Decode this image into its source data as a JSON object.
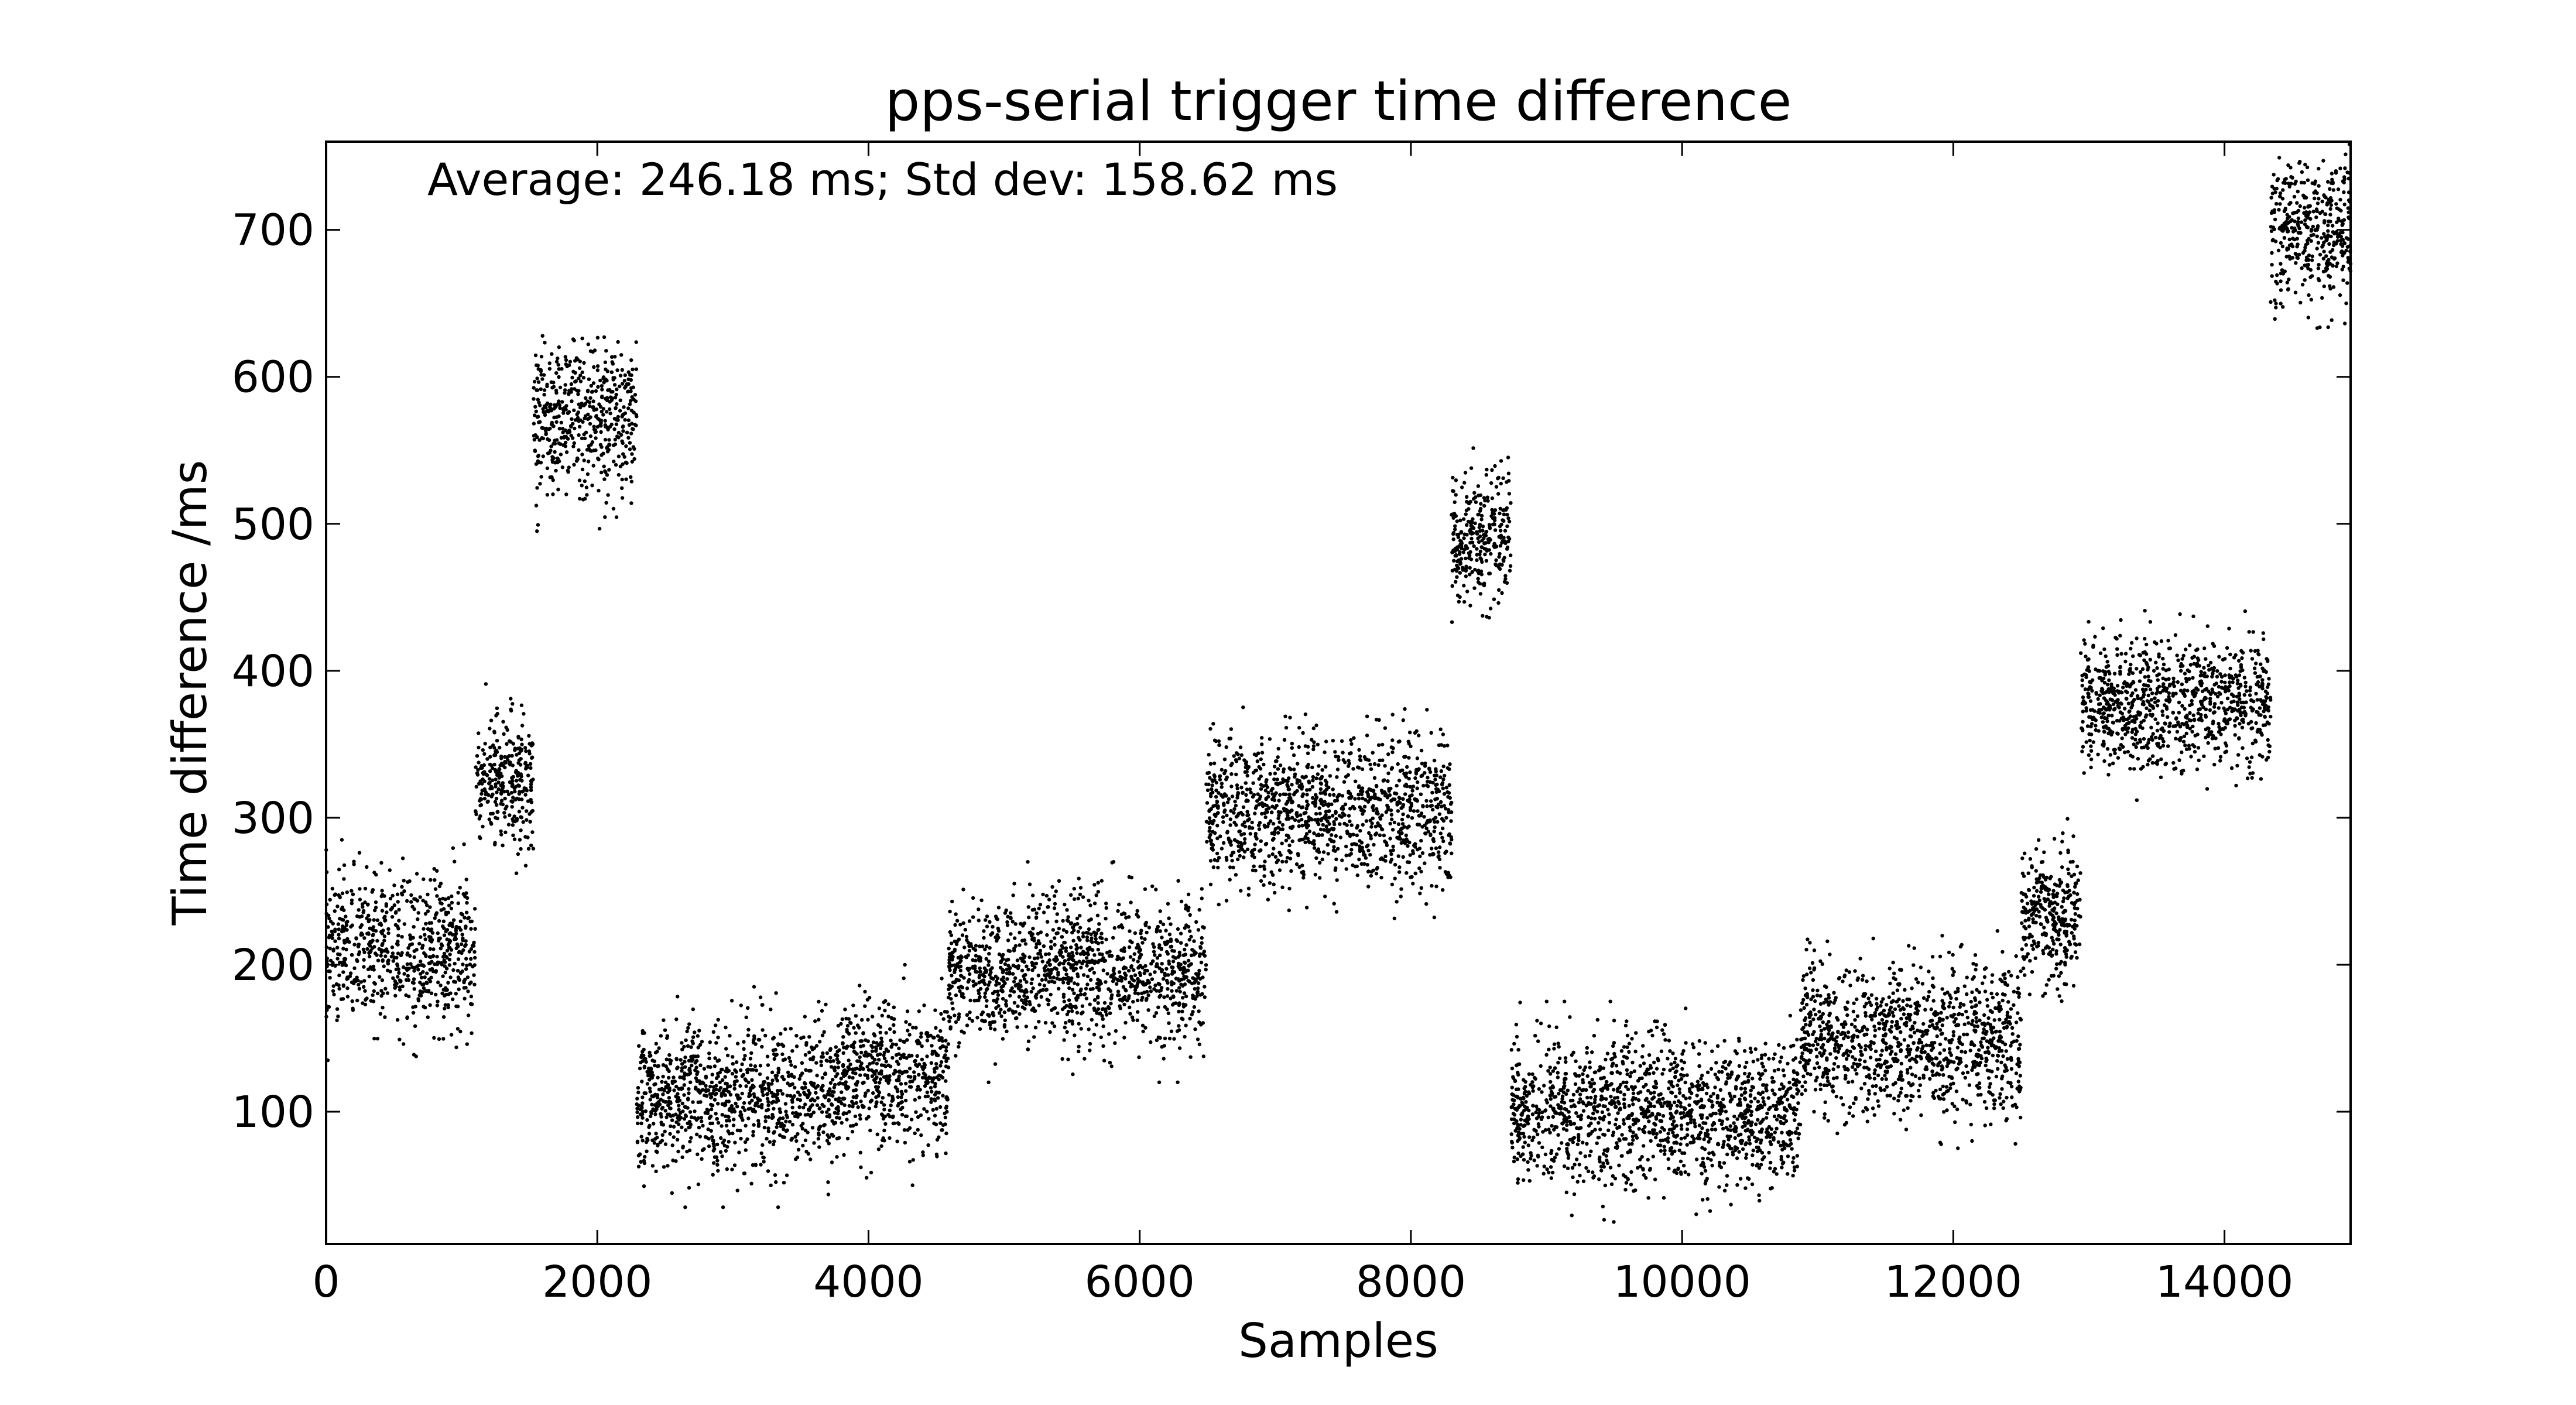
{
  "chart_data": {
    "type": "scatter",
    "title": "pps-serial trigger time difference",
    "xlabel": "Samples",
    "ylabel": "Time difference /ms",
    "xlim": [
      0,
      14930
    ],
    "ylim": [
      10,
      760
    ],
    "xticks": [
      0,
      2000,
      4000,
      6000,
      8000,
      10000,
      12000,
      14000
    ],
    "yticks": [
      100,
      200,
      300,
      400,
      500,
      600,
      700
    ],
    "annotation": "Average: 246.18 ms;  Std dev: 158.62 ms",
    "grid": false,
    "marker_color": "#000000",
    "segments": [
      {
        "x_start": 0,
        "x_end": 1100,
        "center": 210,
        "spread": 25,
        "count": 700
      },
      {
        "x_start": 1100,
        "x_end": 1530,
        "center": 325,
        "spread": 22,
        "count": 300
      },
      {
        "x_start": 1530,
        "x_end": 2290,
        "center": 570,
        "spread": 25,
        "count": 520
      },
      {
        "x_start": 2290,
        "x_end": 3800,
        "center": 110,
        "spread": 25,
        "count": 1000
      },
      {
        "x_start": 3800,
        "x_end": 4590,
        "center": 125,
        "spread": 25,
        "count": 520
      },
      {
        "x_start": 4590,
        "x_end": 6490,
        "center": 195,
        "spread": 25,
        "count": 1250
      },
      {
        "x_start": 6490,
        "x_end": 8300,
        "center": 305,
        "spread": 25,
        "count": 1200
      },
      {
        "x_start": 8300,
        "x_end": 8740,
        "center": 490,
        "spread": 22,
        "count": 300
      },
      {
        "x_start": 8740,
        "x_end": 10870,
        "center": 100,
        "spread": 25,
        "count": 1400
      },
      {
        "x_start": 10870,
        "x_end": 12500,
        "center": 148,
        "spread": 25,
        "count": 1080
      },
      {
        "x_start": 12500,
        "x_end": 12940,
        "center": 235,
        "spread": 22,
        "count": 300
      },
      {
        "x_start": 12940,
        "x_end": 14340,
        "center": 378,
        "spread": 22,
        "count": 920
      },
      {
        "x_start": 14340,
        "x_end": 14930,
        "center": 700,
        "spread": 25,
        "count": 400
      }
    ]
  }
}
